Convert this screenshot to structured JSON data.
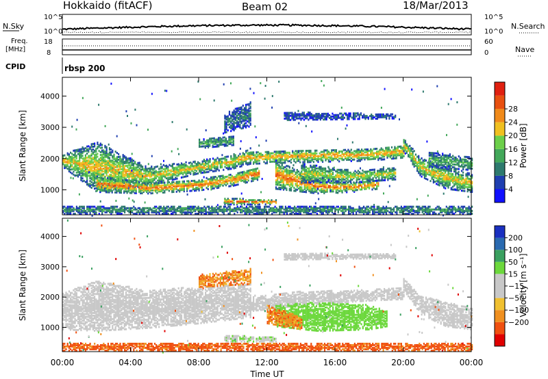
{
  "header": {
    "station": "Hokkaido (fitACF)",
    "beam": "Beam 02",
    "date": "18/Mar/2013"
  },
  "top_panel": {
    "left_label": "N.Sky",
    "right_label": "N.Search",
    "tick_top": "10^5",
    "tick_bottom": "10^0"
  },
  "freq_panel": {
    "left_label_1": "Freq.",
    "left_label_2": "[MHz]",
    "left_tick_top": "18",
    "left_tick_bottom": "8",
    "right_label": "Nave",
    "right_tick_top": "60",
    "right_tick_bottom": "0"
  },
  "cpid": {
    "label": "CPID",
    "value": "rbsp 200"
  },
  "colors": {
    "power_scale": [
      "#1010ff",
      "#1f3fb0",
      "#2e7a6e",
      "#43a85a",
      "#6ccf4a",
      "#f0c020",
      "#f08a1a",
      "#e85010",
      "#e02010"
    ],
    "velocity_scale": [
      "#e00000",
      "#f05010",
      "#f09020",
      "#f0c030",
      "#c8c8c8",
      "#c8c8c8",
      "#6cd83c",
      "#3aa060",
      "#2a6ab0",
      "#1a30c0"
    ]
  },
  "chart_data": [
    {
      "type": "heatmap",
      "name": "power",
      "xlabel": "Time UT",
      "ylabel": "Slant Range [km]",
      "xlim": [
        0,
        24
      ],
      "ylim": [
        200,
        4600
      ],
      "x_ticks": [
        "00:00",
        "04:00",
        "08:00",
        "12:00",
        "16:00",
        "20:00",
        "00:00"
      ],
      "y_ticks": [
        1000,
        2000,
        3000,
        4000
      ],
      "colorbar": {
        "label": "Power [dB]",
        "ticks": [
          "4",
          "8",
          "12",
          "16",
          "20",
          "24",
          "28"
        ]
      },
      "bands": [
        {
          "t": [
            0.0,
            2.0,
            5.0,
            8.0,
            10.0,
            11.0
          ],
          "r0": [
            1700,
            900,
            1100,
            1500,
            1650,
            1800
          ],
          "r1": [
            2100,
            2500,
            1700,
            1900,
            2100,
            2300
          ],
          "level": 20
        },
        {
          "t": [
            2.0,
            5.0,
            8.0,
            10.0,
            11.5
          ],
          "r0": [
            900,
            850,
            950,
            1100,
            1300
          ],
          "r1": [
            1400,
            1200,
            1300,
            1500,
            1700
          ],
          "level": 24
        },
        {
          "t": [
            11.0,
            14.0,
            18.0,
            20.0
          ],
          "r0": [
            1800,
            1850,
            1900,
            2000
          ],
          "r1": [
            2200,
            2250,
            2300,
            2400
          ],
          "level": 22
        },
        {
          "t": [
            12.5,
            15.0,
            17.0,
            18.5
          ],
          "r0": [
            1000,
            850,
            900,
            1000
          ],
          "r1": [
            1900,
            1300,
            1200,
            1300
          ],
          "level": 24
        },
        {
          "t": [
            14.0,
            17.0,
            19.5
          ],
          "r0": [
            1200,
            1200,
            1300
          ],
          "r1": [
            1800,
            1600,
            1700
          ],
          "level": 18
        },
        {
          "t": [
            20.0,
            21.0,
            22.5,
            24.0
          ],
          "r0": [
            2200,
            1400,
            1000,
            900
          ],
          "r1": [
            2600,
            2000,
            1700,
            1500
          ],
          "level": 20
        },
        {
          "t": [
            21.5,
            24.0
          ],
          "r0": [
            1700,
            1600
          ],
          "r1": [
            2200,
            2000
          ],
          "level": 14
        },
        {
          "t": [
            8.0,
            10.0
          ],
          "r0": [
            2300,
            2400
          ],
          "r1": [
            2600,
            2700
          ],
          "level": 14
        },
        {
          "t": [
            13.0,
            19.5
          ],
          "r0": [
            3200,
            3250
          ],
          "r1": [
            3450,
            3400
          ],
          "level": 8
        },
        {
          "t": [
            9.5,
            11.0
          ],
          "r0": [
            2800,
            3000
          ],
          "r1": [
            3400,
            3800
          ],
          "level": 10
        },
        {
          "t": [
            9.5,
            12.5
          ],
          "r0": [
            500,
            500
          ],
          "r1": [
            700,
            650
          ],
          "level": 24
        },
        {
          "t": [
            0.0,
            24.0
          ],
          "r0": [
            200,
            200
          ],
          "r1": [
            450,
            450
          ],
          "level": 12
        }
      ]
    },
    {
      "type": "heatmap",
      "name": "velocity",
      "xlabel": "Time UT",
      "ylabel": "Slant Range [km]",
      "xlim": [
        0,
        24
      ],
      "ylim": [
        200,
        4600
      ],
      "x_ticks": [
        "00:00",
        "04:00",
        "08:00",
        "12:00",
        "16:00",
        "20:00",
        "00:00"
      ],
      "y_ticks": [
        1000,
        2000,
        3000,
        4000
      ],
      "colorbar": {
        "label": "Velocity [m s⁻¹]",
        "ticks": [
          "200",
          "100",
          "50",
          "15",
          "−15",
          "−50",
          "−100",
          "−200"
        ]
      },
      "bands": [
        {
          "t": [
            0.0,
            2.0,
            5.0,
            8.0,
            11.0
          ],
          "r0": [
            900,
            850,
            950,
            1100,
            1300
          ],
          "r1": [
            2100,
            2500,
            2200,
            2300,
            2400
          ],
          "level": 0
        },
        {
          "t": [
            11.0,
            14.0,
            18.0,
            20.0
          ],
          "r0": [
            1500,
            1700,
            1850,
            1900
          ],
          "r1": [
            2000,
            2150,
            2200,
            2300
          ],
          "level": 0
        },
        {
          "t": [
            20.0,
            21.0,
            22.5,
            24.0
          ],
          "r0": [
            2200,
            1400,
            1000,
            900
          ],
          "r1": [
            2600,
            2000,
            1800,
            1600
          ],
          "level": 0
        },
        {
          "t": [
            12.5,
            15.0,
            18.0,
            19.0
          ],
          "r0": [
            1000,
            850,
            900,
            1000
          ],
          "r1": [
            1700,
            1800,
            1700,
            1500
          ],
          "level": 60
        },
        {
          "t": [
            12.0,
            14.0
          ],
          "r0": [
            1100,
            900
          ],
          "r1": [
            1700,
            1300
          ],
          "level": -40
        },
        {
          "t": [
            13.0,
            19.5
          ],
          "r0": [
            3200,
            3250
          ],
          "r1": [
            3400,
            3400
          ],
          "level": 0
        },
        {
          "t": [
            8.0,
            11.0
          ],
          "r0": [
            2300,
            2400
          ],
          "r1": [
            2700,
            2900
          ],
          "level": -40
        },
        {
          "t": [
            9.5,
            12.5
          ],
          "r0": [
            500,
            500
          ],
          "r1": [
            700,
            650
          ],
          "level": 30
        },
        {
          "t": [
            0.0,
            24.0
          ],
          "r0": [
            200,
            200
          ],
          "r1": [
            450,
            450
          ],
          "level": -60
        }
      ]
    }
  ]
}
